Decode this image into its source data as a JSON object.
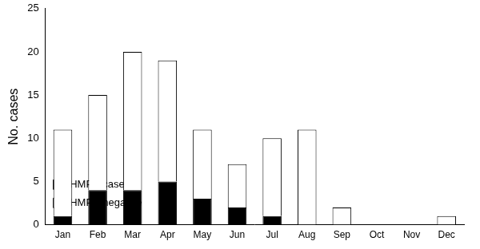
{
  "chart_data": {
    "type": "bar",
    "stacked": true,
    "y_label": "No. cases",
    "categories": [
      "Jan",
      "Feb",
      "Mar",
      "Apr",
      "May",
      "Jun",
      "Jul",
      "Aug",
      "Sep",
      "Oct",
      "Nov",
      "Dec"
    ],
    "series": [
      {
        "name": "HMPV cases",
        "color": "#000000",
        "values": [
          1,
          4,
          4,
          5,
          3,
          2,
          1,
          0,
          0,
          0,
          0,
          0
        ]
      },
      {
        "name": "HMPV negative",
        "color": "#ffffff",
        "values": [
          10,
          11,
          16,
          14,
          8,
          5,
          9,
          11,
          2,
          0,
          0,
          1
        ]
      }
    ],
    "ylim": [
      0,
      25
    ],
    "yticks": [
      0,
      5,
      10,
      15,
      20,
      25
    ],
    "grid": false,
    "legend": "top-right"
  }
}
